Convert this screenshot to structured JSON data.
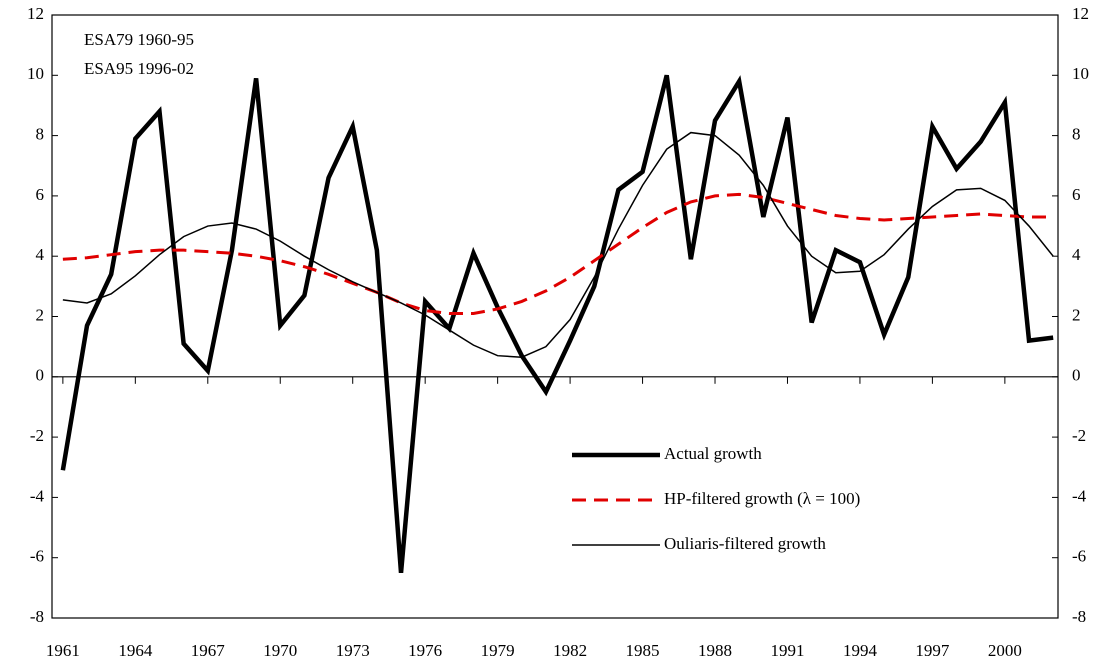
{
  "chart_data": {
    "type": "line",
    "annotations": [
      "ESA79 1960-95",
      "ESA95 1996-02"
    ],
    "x": [
      1961,
      1962,
      1963,
      1964,
      1965,
      1966,
      1967,
      1968,
      1969,
      1970,
      1971,
      1972,
      1973,
      1974,
      1975,
      1976,
      1977,
      1978,
      1979,
      1980,
      1981,
      1982,
      1983,
      1984,
      1985,
      1986,
      1987,
      1988,
      1989,
      1990,
      1991,
      1992,
      1993,
      1994,
      1995,
      1996,
      1997,
      1998,
      1999,
      2000,
      2001,
      2002
    ],
    "series": [
      {
        "name": "Actual growth",
        "color": "#000000",
        "line_width": 4.5,
        "dash": "solid",
        "values": [
          -3.1,
          1.7,
          3.4,
          7.9,
          8.8,
          1.1,
          0.2,
          4.2,
          9.9,
          1.7,
          2.7,
          6.6,
          8.3,
          4.2,
          -6.5,
          2.5,
          1.6,
          4.1,
          2.3,
          0.7,
          -0.5,
          1.2,
          3.0,
          6.2,
          6.8,
          10.0,
          3.9,
          8.5,
          9.8,
          5.3,
          8.6,
          1.8,
          4.2,
          3.8,
          1.4,
          3.3,
          8.3,
          6.9,
          7.8,
          9.1,
          1.2,
          1.3
        ]
      },
      {
        "name": "HP-filtered growth (λ = 100)",
        "color": "#e00000",
        "line_width": 3,
        "dash": "dashed",
        "values": [
          3.9,
          3.95,
          4.05,
          4.15,
          4.2,
          4.2,
          4.15,
          4.1,
          4.0,
          3.85,
          3.65,
          3.4,
          3.1,
          2.8,
          2.45,
          2.2,
          2.1,
          2.1,
          2.25,
          2.5,
          2.85,
          3.3,
          3.85,
          4.4,
          4.95,
          5.45,
          5.8,
          6.0,
          6.05,
          5.95,
          5.75,
          5.55,
          5.35,
          5.25,
          5.2,
          5.25,
          5.3,
          5.35,
          5.4,
          5.35,
          5.3,
          5.3
        ]
      },
      {
        "name": "Ouliaris-filtered growth",
        "color": "#000000",
        "line_width": 1.5,
        "dash": "solid",
        "values": [
          2.55,
          2.45,
          2.75,
          3.35,
          4.05,
          4.65,
          5.0,
          5.1,
          4.9,
          4.5,
          4.0,
          3.55,
          3.15,
          2.8,
          2.45,
          2.05,
          1.55,
          1.05,
          0.7,
          0.65,
          1.0,
          1.9,
          3.3,
          4.9,
          6.35,
          7.55,
          8.1,
          8.0,
          7.35,
          6.35,
          5.0,
          4.0,
          3.45,
          3.5,
          4.05,
          4.9,
          5.65,
          6.2,
          6.25,
          5.85,
          5.0,
          4.0
        ]
      }
    ],
    "xlim": [
      1960.55,
      2002.2
    ],
    "xticks": [
      1961,
      1964,
      1967,
      1970,
      1973,
      1976,
      1979,
      1982,
      1985,
      1988,
      1991,
      1994,
      1997,
      2000
    ],
    "ylim": [
      -8,
      12
    ],
    "yticks": [
      -8,
      -6,
      -4,
      -2,
      0,
      2,
      4,
      6,
      8,
      10,
      12
    ],
    "y2lim": [
      -8,
      12
    ],
    "y2ticks": [
      -8,
      -6,
      -4,
      -2,
      0,
      2,
      4,
      6,
      8,
      10,
      12
    ],
    "grid": false
  }
}
